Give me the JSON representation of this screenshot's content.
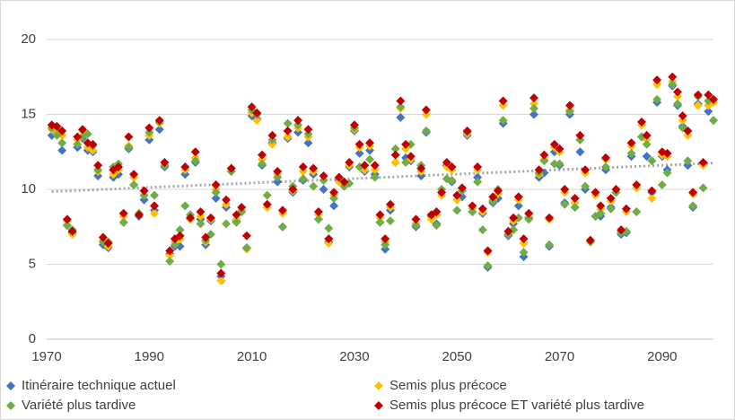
{
  "chart_data": {
    "type": "scatter",
    "x": [
      1971,
      1972,
      1973,
      1974,
      1975,
      1976,
      1977,
      1978,
      1979,
      1980,
      1981,
      1982,
      1983,
      1984,
      1985,
      1986,
      1987,
      1988,
      1989,
      1990,
      1991,
      1992,
      1993,
      1994,
      1995,
      1996,
      1997,
      1998,
      1999,
      2000,
      2001,
      2002,
      2003,
      2004,
      2005,
      2006,
      2007,
      2008,
      2009,
      2010,
      2011,
      2012,
      2013,
      2014,
      2015,
      2016,
      2017,
      2018,
      2019,
      2020,
      2021,
      2022,
      2023,
      2024,
      2025,
      2026,
      2027,
      2028,
      2029,
      2030,
      2031,
      2032,
      2033,
      2034,
      2035,
      2036,
      2037,
      2038,
      2039,
      2040,
      2041,
      2042,
      2043,
      2044,
      2045,
      2046,
      2047,
      2048,
      2049,
      2050,
      2051,
      2052,
      2053,
      2054,
      2055,
      2056,
      2057,
      2058,
      2059,
      2060,
      2061,
      2062,
      2063,
      2064,
      2065,
      2066,
      2067,
      2068,
      2069,
      2070,
      2071,
      2072,
      2073,
      2074,
      2075,
      2076,
      2077,
      2078,
      2079,
      2080,
      2081,
      2082,
      2083,
      2084,
      2085,
      2086,
      2087,
      2088,
      2089,
      2090,
      2091,
      2092,
      2093,
      2094,
      2095,
      2096,
      2097,
      2098,
      2099,
      2100
    ],
    "series": [
      {
        "name": "Itinéraire technique actuel",
        "color": "#4472c4",
        "values": [
          13.6,
          13.9,
          12.6,
          7.6,
          7.1,
          12.8,
          13.4,
          12.6,
          12.5,
          10.9,
          6.3,
          6.1,
          10.8,
          11.0,
          7.8,
          12.7,
          10.3,
          8.2,
          9.3,
          13.3,
          8.6,
          14.0,
          11.5,
          5.7,
          6.2,
          6.2,
          11.0,
          8.0,
          11.8,
          8.0,
          6.3,
          7.9,
          9.4,
          4.2,
          8.8,
          11.2,
          7.9,
          8.5,
          6.1,
          14.9,
          14.7,
          11.6,
          8.8,
          13.1,
          10.5,
          7.5,
          13.4,
          9.8,
          13.8,
          10.6,
          13.1,
          11.0,
          8.0,
          10.0,
          6.5,
          8.9,
          10.6,
          10.2,
          11.5,
          13.9,
          12.4,
          11.2,
          12.6,
          11.0,
          7.8,
          6.0,
          8.6,
          11.8,
          14.8,
          12.1,
          11.9,
          7.5,
          10.9,
          13.8,
          8.2,
          7.7,
          9.6,
          11.6,
          10.5,
          8.6,
          9.5,
          13.6,
          8.5,
          10.8,
          8.4,
          4.8,
          9.1,
          9.4,
          14.4,
          6.9,
          7.7,
          8.9,
          5.5,
          8.1,
          15.0,
          10.8,
          11.1,
          6.2,
          12.5,
          11.6,
          9.1,
          15.0,
          8.8,
          12.5,
          10.0,
          6.5,
          8.2,
          8.2,
          11.3,
          8.8,
          9.8,
          7.0,
          7.1,
          12.2,
          8.5,
          13.5,
          12.2,
          9.8,
          15.8,
          12.2,
          11.3,
          16.9,
          15.6,
          14.2,
          11.6,
          8.8,
          15.7,
          11.7,
          15.2,
          14.6
        ]
      },
      {
        "name": "Semis plus précoce",
        "color": "#ffc000",
        "values": [
          14.0,
          13.7,
          13.6,
          7.9,
          7.0,
          13.3,
          13.9,
          12.8,
          12.6,
          11.2,
          6.6,
          6.2,
          11.0,
          11.3,
          8.2,
          12.9,
          10.8,
          8.3,
          9.6,
          13.6,
          8.4,
          14.4,
          11.6,
          5.6,
          6.5,
          6.7,
          11.3,
          8.0,
          12.1,
          8.2,
          6.5,
          8.0,
          10.0,
          3.9,
          9.0,
          11.4,
          8.0,
          8.6,
          6.0,
          15.1,
          14.6,
          12.0,
          8.8,
          13.0,
          11.0,
          8.4,
          13.5,
          9.9,
          14.1,
          11.2,
          13.5,
          11.2,
          8.3,
          10.6,
          6.4,
          9.6,
          10.5,
          10.3,
          11.6,
          14.0,
          12.8,
          11.3,
          12.9,
          11.3,
          8.1,
          6.5,
          8.8,
          11.8,
          15.4,
          12.7,
          12.0,
          7.7,
          11.2,
          15.0,
          8.0,
          8.3,
          9.6,
          11.5,
          11.3,
          9.3,
          9.9,
          13.7,
          8.7,
          11.3,
          8.5,
          5.8,
          9.3,
          9.7,
          15.6,
          7.0,
          7.9,
          9.3,
          6.4,
          8.3,
          15.7,
          11.0,
          12.0,
          8.0,
          12.8,
          12.5,
          9.8,
          15.3,
          9.1,
          13.3,
          11.1,
          6.5,
          9.6,
          8.7,
          12.0,
          9.2,
          9.8,
          7.2,
          8.5,
          12.9,
          10.1,
          14.3,
          13.3,
          9.4,
          17.0,
          12.3,
          12.2,
          17.2,
          16.2,
          14.6,
          13.6,
          9.7,
          15.6,
          11.6,
          15.6,
          15.8
        ]
      },
      {
        "name": "Variété plus tardive",
        "color": "#70ad47",
        "values": [
          14.1,
          13.6,
          13.1,
          7.6,
          7.3,
          13.0,
          13.5,
          13.7,
          12.9,
          11.3,
          6.5,
          6.5,
          11.5,
          11.7,
          7.8,
          12.8,
          10.3,
          8.4,
          9.6,
          13.8,
          9.6,
          14.5,
          11.6,
          5.2,
          6.3,
          7.3,
          8.9,
          8.3,
          11.9,
          7.7,
          6.6,
          7.0,
          9.8,
          5.0,
          7.7,
          11.2,
          7.8,
          8.5,
          6.1,
          15.3,
          15.0,
          11.7,
          9.6,
          13.3,
          10.8,
          7.5,
          14.4,
          10.2,
          14.3,
          10.7,
          13.7,
          10.2,
          8.0,
          10.6,
          7.4,
          9.4,
          10.8,
          10.2,
          10.4,
          14.1,
          11.5,
          11.6,
          12.0,
          10.8,
          7.8,
          6.3,
          7.9,
          12.7,
          15.5,
          11.8,
          13.0,
          7.6,
          11.6,
          13.9,
          8.3,
          7.6,
          10.0,
          10.7,
          10.6,
          8.6,
          9.9,
          13.8,
          8.5,
          10.5,
          7.3,
          4.9,
          9.2,
          10.0,
          14.6,
          7.0,
          7.3,
          8.1,
          5.8,
          8.0,
          15.4,
          11.1,
          11.9,
          6.3,
          11.7,
          11.7,
          9.0,
          15.2,
          8.8,
          13.3,
          10.2,
          6.5,
          8.2,
          8.4,
          11.5,
          8.7,
          9.8,
          7.1,
          7.2,
          12.4,
          8.5,
          13.5,
          13.0,
          11.9,
          16.0,
          10.3,
          11.1,
          17.0,
          15.7,
          14.1,
          11.9,
          8.9,
          16.2,
          10.1,
          15.9,
          14.6
        ]
      },
      {
        "name": "Semis plus précoce ET variété plus tardive",
        "color": "#c00000",
        "values": [
          14.3,
          14.2,
          13.9,
          8.0,
          7.2,
          13.5,
          14.0,
          13.1,
          13.0,
          11.6,
          6.8,
          6.4,
          11.3,
          11.5,
          8.4,
          13.5,
          11.0,
          8.3,
          9.9,
          14.1,
          8.9,
          14.6,
          11.8,
          5.9,
          6.7,
          6.9,
          11.5,
          8.1,
          12.5,
          8.5,
          6.8,
          8.1,
          10.3,
          4.4,
          9.3,
          11.4,
          8.3,
          8.8,
          6.9,
          15.5,
          15.1,
          12.3,
          9.0,
          13.6,
          11.2,
          8.6,
          13.9,
          10.0,
          14.6,
          11.5,
          14.0,
          11.4,
          8.5,
          10.9,
          6.7,
          9.8,
          10.8,
          10.5,
          11.8,
          14.3,
          13.0,
          11.6,
          13.1,
          11.6,
          8.3,
          6.7,
          9.0,
          12.3,
          15.9,
          13.0,
          12.2,
          8.0,
          11.4,
          15.3,
          8.3,
          8.5,
          9.8,
          11.8,
          11.5,
          9.6,
          10.1,
          13.9,
          8.9,
          11.5,
          8.7,
          5.9,
          9.5,
          9.9,
          15.9,
          7.2,
          8.1,
          9.5,
          6.7,
          8.4,
          16.1,
          11.3,
          12.3,
          8.1,
          13.0,
          12.7,
          10.0,
          15.6,
          9.4,
          13.6,
          11.3,
          6.6,
          9.8,
          8.9,
          12.1,
          9.4,
          10.0,
          7.3,
          8.7,
          13.1,
          10.3,
          14.5,
          13.6,
          9.9,
          17.3,
          12.5,
          12.4,
          17.5,
          16.5,
          14.9,
          13.9,
          9.8,
          16.3,
          11.8,
          16.3,
          16.0
        ]
      }
    ],
    "trendline": {
      "x": [
        1971,
        2100
      ],
      "values": [
        9.85,
        11.75
      ],
      "color": "#a6a6a6"
    },
    "xlim": [
      1970,
      2100
    ],
    "xticks": [
      1970,
      1990,
      2010,
      2030,
      2050,
      2070,
      2090
    ],
    "ylim": [
      0,
      20
    ],
    "yticks": [
      0,
      5,
      10,
      15,
      20
    ],
    "grid": true,
    "legend": "bottom"
  }
}
